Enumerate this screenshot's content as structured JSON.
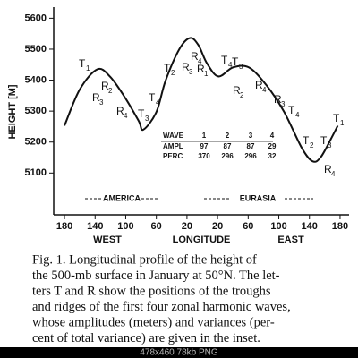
{
  "chart_data": {
    "type": "line",
    "y_label": "HEIGHT [M]",
    "x_label": "LONGITUDE",
    "x_side_labels": [
      "WEST",
      "EAST"
    ],
    "regions": [
      "AMERICA",
      "EURASIA"
    ],
    "xlim": [
      -190,
      190
    ],
    "xticks": [
      {
        "value": -180,
        "label": "180"
      },
      {
        "value": -140,
        "label": "140"
      },
      {
        "value": -100,
        "label": "100"
      },
      {
        "value": -60,
        "label": "60"
      },
      {
        "value": -20,
        "label": "20"
      },
      20,
      60,
      100,
      140,
      180
    ],
    "ylim": [
      4965,
      5630
    ],
    "yticks": [
      5100,
      5200,
      5300,
      5400,
      5500,
      5600
    ],
    "color": "#111111",
    "x": [
      -180,
      -160,
      -137,
      -120,
      -100,
      -83,
      -77,
      -60,
      -48,
      -30,
      -16,
      -5,
      6,
      21,
      40,
      61,
      84,
      107,
      130,
      144,
      155,
      171,
      177
    ],
    "values": [
      5253,
      5370,
      5435,
      5410,
      5340,
      5268,
      5240,
      5297,
      5398,
      5500,
      5536,
      5513,
      5455,
      5412,
      5441,
      5441,
      5383,
      5297,
      5181,
      5138,
      5152,
      5224,
      5253
    ],
    "annotations": [
      {
        "text": "T",
        "sub": "1"
      },
      {
        "text": "R",
        "sub": "2"
      },
      {
        "text": "R",
        "sub": "3"
      },
      {
        "text": "R",
        "sub": "4"
      },
      {
        "text": "T",
        "sub": "3"
      },
      {
        "text": "T",
        "sub": "4"
      },
      {
        "text": "T",
        "sub": "2"
      },
      {
        "text": "R",
        "sub": "3"
      },
      {
        "text": "R",
        "sub": "4"
      },
      {
        "text": "R",
        "sub": "1"
      },
      {
        "text": "T",
        "sub": "4"
      },
      {
        "text": "T",
        "sub": "3"
      },
      {
        "text": "R",
        "sub": "2"
      },
      {
        "text": "R",
        "sub": "4"
      },
      {
        "text": "R",
        "sub": "3"
      },
      {
        "text": "T",
        "sub": "4"
      },
      {
        "text": "T",
        "sub": "2"
      },
      {
        "text": "T",
        "sub": "3"
      },
      {
        "text": "T",
        "sub": "1"
      },
      {
        "text": "R",
        "sub": "4"
      }
    ],
    "inset": {
      "header": [
        "WAVE",
        "1",
        "2",
        "3",
        "4"
      ],
      "rows": [
        [
          "AMPL",
          "97",
          "87",
          "87",
          "29"
        ],
        [
          "PERC",
          "370",
          "296",
          "296",
          "32"
        ]
      ]
    },
    "caption": [
      "Fig. 1. Longitudinal profile of the height of",
      "the 500-mb surface in January at 50°N. The let-",
      "ters T and R show the positions of the troughs",
      "and ridges of the first four zonal harmonic waves,",
      "whose amplitudes (meters) and variances (per-",
      "cent of total variance) are given in the inset."
    ]
  },
  "viewer": {
    "status": "478x460 78kb PNG"
  }
}
